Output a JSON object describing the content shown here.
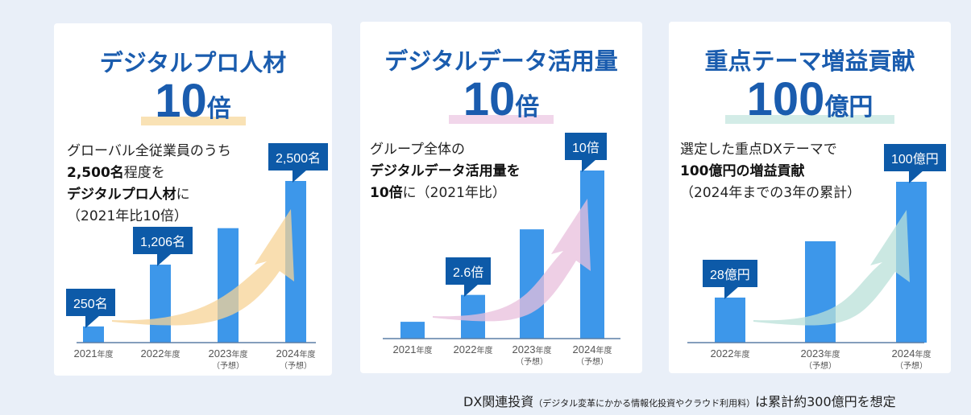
{
  "colors": {
    "background": "#e9eff8",
    "title": "#1a5cae",
    "bar": "#3d97ea",
    "callout": "#0d5aa8"
  },
  "cards": [
    {
      "title": "デジタルプロ人材",
      "big_number": "10",
      "big_unit": "倍",
      "highlight_color": "#f9e2b5",
      "arrow_color": "#f7d396",
      "desc": [
        [
          {
            "t": "グローバル全従業員のうち",
            "b": false
          }
        ],
        [
          {
            "t": "2,500名",
            "b": true
          },
          {
            "t": "程度を",
            "b": false
          }
        ],
        [
          {
            "t": "デジタルプロ人材",
            "b": true
          },
          {
            "t": "に",
            "b": false
          }
        ],
        [
          {
            "t": "（2021年比10倍）",
            "b": false
          }
        ]
      ]
    },
    {
      "title": "デジタルデータ活用量",
      "big_number": "10",
      "big_unit": "倍",
      "highlight_color": "#f1d6ea",
      "arrow_color": "#e8bfdc",
      "desc": [
        [
          {
            "t": "グループ全体の",
            "b": false
          }
        ],
        [
          {
            "t": "デジタルデータ活用量を",
            "b": true
          }
        ],
        [
          {
            "t": "10倍",
            "b": true
          },
          {
            "t": "に（2021年比）",
            "b": false
          }
        ]
      ]
    },
    {
      "title": "重点テーマ増益貢献",
      "big_number": "100",
      "big_unit": "億円",
      "highlight_color": "#d3ece7",
      "arrow_color": "#b9e0d8",
      "desc": [
        [
          {
            "t": "選定した重点DXテーマで",
            "b": false
          }
        ],
        [
          {
            "t": "100億円の増益貢献",
            "b": true
          }
        ],
        [
          {
            "t": "（2024年までの3年の累計）",
            "b": false
          }
        ]
      ]
    }
  ],
  "chart_data": [
    {
      "type": "bar",
      "title": "デジタルプロ人材",
      "unit": "名",
      "categories": [
        {
          "year": "2021",
          "unit": "年度",
          "note": ""
        },
        {
          "year": "2022",
          "unit": "年度",
          "note": ""
        },
        {
          "year": "2023",
          "unit": "年度",
          "note": "（予想）"
        },
        {
          "year": "2024",
          "unit": "年度",
          "note": "（予想）"
        }
      ],
      "values": [
        250,
        1206,
        1770,
        2500
      ],
      "labels": [
        "250名",
        "1,206名",
        "",
        "2,500名"
      ]
    },
    {
      "type": "bar",
      "title": "デジタルデータ活用量",
      "unit": "倍（2021年比）",
      "categories": [
        {
          "year": "2021",
          "unit": "年度",
          "note": ""
        },
        {
          "year": "2022",
          "unit": "年度",
          "note": ""
        },
        {
          "year": "2023",
          "unit": "年度",
          "note": "（予想）"
        },
        {
          "year": "2024",
          "unit": "年度",
          "note": "（予想）"
        }
      ],
      "values": [
        1,
        2.6,
        6.5,
        10
      ],
      "labels": [
        "",
        "2.6倍",
        "",
        "10倍"
      ]
    },
    {
      "type": "bar",
      "title": "重点テーマ増益貢献",
      "unit": "億円",
      "categories": [
        {
          "year": "2022",
          "unit": "年度",
          "note": ""
        },
        {
          "year": "2023",
          "unit": "年度",
          "note": "（予想）"
        },
        {
          "year": "2024",
          "unit": "年度",
          "note": "（予想）"
        }
      ],
      "values": [
        28,
        63,
        100
      ],
      "labels": [
        "28億円",
        "",
        "100億円"
      ]
    }
  ],
  "footer": {
    "lead": "DX関連投資",
    "note": "（デジタル変革にかかる情報化投資やクラウド利用料）",
    "tail": "は累計約300億円を想定"
  }
}
